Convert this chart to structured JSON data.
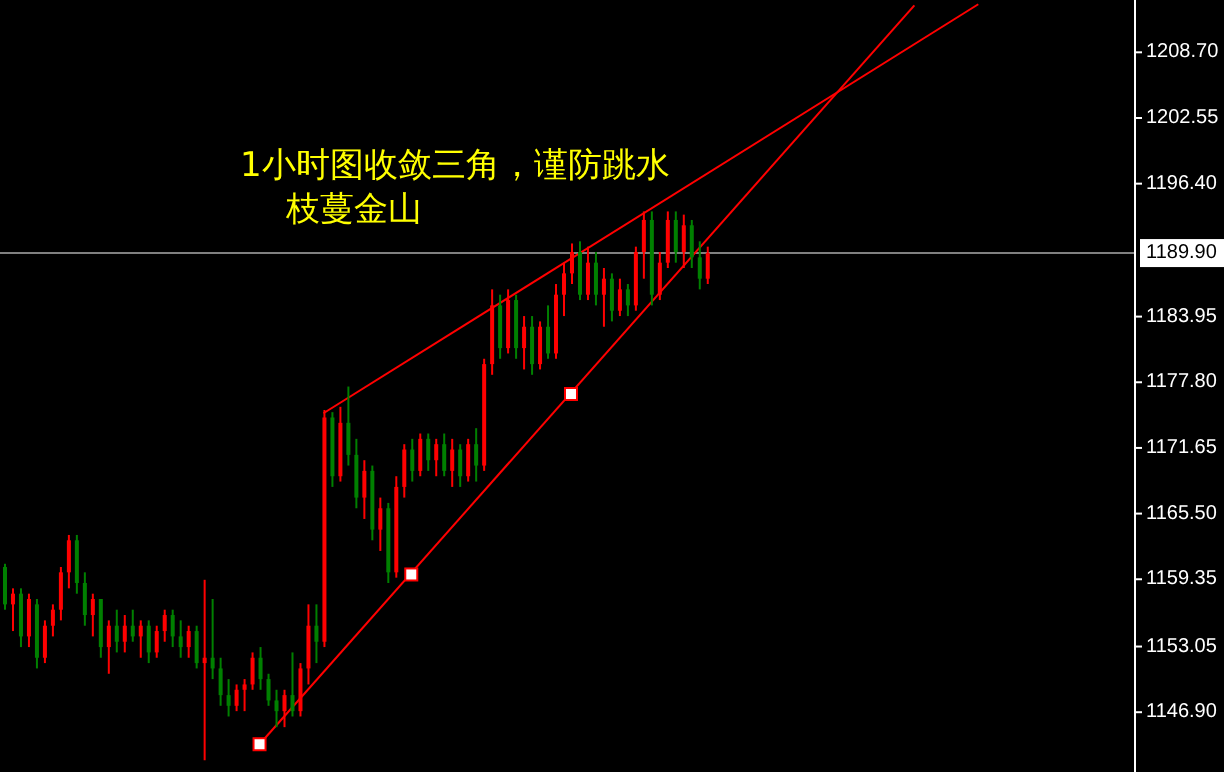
{
  "chart_data": {
    "type": "candlestick",
    "categories": [
      null,
      null,
      null,
      null,
      null,
      null,
      null,
      null,
      null,
      null,
      null,
      null,
      null,
      null,
      null,
      null,
      null,
      null,
      null,
      null,
      null,
      null,
      null,
      null,
      null,
      null,
      null,
      null,
      null,
      null,
      null,
      null,
      null,
      null,
      null,
      null,
      null,
      null,
      null,
      null,
      null,
      null,
      null,
      null,
      null,
      null,
      null,
      null,
      null,
      null,
      null,
      null,
      null,
      null,
      null,
      null,
      null,
      null,
      null,
      null,
      null,
      null,
      null,
      null,
      null,
      null,
      null,
      null,
      null,
      null,
      null,
      null,
      null,
      null,
      null,
      null,
      null,
      null,
      null,
      null,
      null,
      null,
      null,
      null,
      null,
      null,
      null,
      null,
      null,
      null,
      null,
      null,
      null,
      null,
      null,
      null,
      null,
      null,
      null,
      null,
      null,
      null,
      null,
      null,
      null,
      null,
      null,
      null,
      null,
      null,
      null,
      null,
      null,
      null,
      null,
      null,
      null,
      null,
      null,
      null,
      null,
      null,
      null,
      null,
      null,
      null,
      null,
      null,
      null,
      null,
      null,
      null,
      null,
      null,
      null,
      null,
      null,
      null,
      null,
      null,
      null,
      null
    ],
    "ohlc": [
      [
        1160.5,
        1160.8,
        1156.5,
        1157
      ],
      [
        1157,
        1158.5,
        1154.5,
        1158
      ],
      [
        1158,
        1158.5,
        1153,
        1154
      ],
      [
        1154,
        1158,
        1153,
        1157.5
      ],
      [
        1157,
        1157.5,
        1151,
        1152
      ],
      [
        1152,
        1155.5,
        1151.5,
        1155
      ],
      [
        1155,
        1157,
        1154,
        1156.5
      ],
      [
        1156.5,
        1160.5,
        1155.5,
        1160
      ],
      [
        1160,
        1163.5,
        1158.5,
        1163
      ],
      [
        1163,
        1163.5,
        1158,
        1159
      ],
      [
        1159,
        1160,
        1155,
        1156
      ],
      [
        1156,
        1158,
        1154,
        1157.5
      ],
      [
        1157.5,
        1157.5,
        1152,
        1153
      ],
      [
        1153,
        1155.5,
        1150.5,
        1155
      ],
      [
        1155,
        1156.5,
        1152.5,
        1153.5
      ],
      [
        1153.5,
        1156,
        1152.5,
        1155
      ],
      [
        1155,
        1156.5,
        1153.5,
        1154
      ],
      [
        1154,
        1155.5,
        1152,
        1155
      ],
      [
        1155,
        1155.5,
        1151.5,
        1152.5
      ],
      [
        1152.5,
        1155,
        1152,
        1154.5
      ],
      [
        1154.5,
        1156.5,
        1153.5,
        1156
      ],
      [
        1156,
        1156.5,
        1153,
        1154
      ],
      [
        1154,
        1155.5,
        1152,
        1153
      ],
      [
        1153,
        1155,
        1152,
        1154.5
      ],
      [
        1154.5,
        1155,
        1151,
        1151.5
      ],
      [
        1151.5,
        1159.3,
        1142.4,
        1152
      ],
      [
        1152,
        1157.5,
        1150,
        1151
      ],
      [
        1151,
        1152,
        1147.5,
        1148.5
      ],
      [
        1148.5,
        1150,
        1146.5,
        1147.5
      ],
      [
        1147.5,
        1149.5,
        1147,
        1149
      ],
      [
        1149,
        1150,
        1147,
        1149.5
      ],
      [
        1149.5,
        1152.5,
        1149,
        1152
      ],
      [
        1152,
        1153,
        1149,
        1150
      ],
      [
        1150,
        1150.5,
        1147.5,
        1148
      ],
      [
        1148,
        1149,
        1145.5,
        1147
      ],
      [
        1147,
        1149,
        1145.5,
        1148.5
      ],
      [
        1148.5,
        1152.5,
        1146.5,
        1147
      ],
      [
        1147,
        1151.5,
        1146.5,
        1151
      ],
      [
        1151,
        1157,
        1149.5,
        1155
      ],
      [
        1155,
        1157,
        1151.5,
        1153.5
      ],
      [
        1153.5,
        1175.2,
        1153,
        1174.5
      ],
      [
        1174.5,
        1175,
        1168,
        1169
      ],
      [
        1169,
        1175.5,
        1168.5,
        1174
      ],
      [
        1174,
        1177.4,
        1170,
        1171
      ],
      [
        1171,
        1172.5,
        1166,
        1167
      ],
      [
        1167,
        1170.5,
        1165,
        1169.5
      ],
      [
        1169.5,
        1170,
        1163,
        1164
      ],
      [
        1164,
        1167,
        1162,
        1166
      ],
      [
        1166,
        1166.5,
        1159,
        1160
      ],
      [
        1160,
        1169,
        1159.5,
        1168
      ],
      [
        1168,
        1172,
        1167,
        1171.5
      ],
      [
        1171.5,
        1172.5,
        1168.5,
        1169.5
      ],
      [
        1169.5,
        1173,
        1169,
        1172.5
      ],
      [
        1172.5,
        1173,
        1169.5,
        1170.5
      ],
      [
        1170.5,
        1172.5,
        1169,
        1172
      ],
      [
        1172,
        1173,
        1169,
        1169.5
      ],
      [
        1169.5,
        1172.5,
        1168,
        1171.5
      ],
      [
        1171.5,
        1172,
        1168,
        1169
      ],
      [
        1169,
        1172.5,
        1168.5,
        1172
      ],
      [
        1172,
        1173.5,
        1168.5,
        1170
      ],
      [
        1170,
        1180,
        1169.5,
        1179.5
      ],
      [
        1179.5,
        1186.5,
        1178.5,
        1185
      ],
      [
        1185,
        1186,
        1180,
        1181
      ],
      [
        1181,
        1186.5,
        1180.5,
        1185.5
      ],
      [
        1185.5,
        1186,
        1180,
        1181
      ],
      [
        1181,
        1184,
        1179,
        1183
      ],
      [
        1183,
        1184,
        1178.5,
        1179.5
      ],
      [
        1179.5,
        1183.5,
        1179,
        1183
      ],
      [
        1183,
        1185,
        1180,
        1180.5
      ],
      [
        1180.5,
        1187,
        1180,
        1186
      ],
      [
        1186,
        1189,
        1184,
        1188
      ],
      [
        1188,
        1190.8,
        1187,
        1190
      ],
      [
        1190,
        1191,
        1185.5,
        1186
      ],
      [
        1186,
        1190.5,
        1185.5,
        1189
      ],
      [
        1189,
        1190,
        1185,
        1186
      ],
      [
        1186,
        1188.5,
        1183,
        1187.5
      ],
      [
        1187.5,
        1188,
        1183.5,
        1184.5
      ],
      [
        1184.5,
        1187.5,
        1184,
        1186.5
      ],
      [
        1186.5,
        1187,
        1184,
        1185
      ],
      [
        1185,
        1190.5,
        1184.5,
        1190
      ],
      [
        1190,
        1193.8,
        1187.5,
        1193
      ],
      [
        1193,
        1193.8,
        1185,
        1186
      ],
      [
        1186,
        1190,
        1185.5,
        1189
      ],
      [
        1189,
        1193.8,
        1188.5,
        1193
      ],
      [
        1193,
        1193.8,
        1189,
        1190
      ],
      [
        1190,
        1193.5,
        1188.5,
        1192.5
      ],
      [
        1192.5,
        1193,
        1188.5,
        1189.5
      ],
      [
        1189.5,
        1191,
        1186.5,
        1187.5
      ],
      [
        1187.5,
        1190.5,
        1187,
        1189.9
      ],
      null,
      null,
      null,
      null,
      null,
      null,
      null,
      null,
      null,
      null,
      null,
      null,
      null,
      null,
      null,
      null,
      null,
      null,
      null,
      null,
      null,
      null,
      null,
      null,
      null,
      null,
      null,
      null,
      null,
      null,
      null,
      null,
      null,
      null,
      null,
      null,
      null,
      null,
      null,
      null,
      null,
      null,
      null,
      null,
      null,
      null,
      null,
      null,
      null,
      null,
      null,
      null,
      null
    ],
    "colors": [
      "#008000",
      "#ff0000",
      "#008000",
      "#ff0000",
      "#008000",
      "#ff0000",
      "#ff0000",
      "#ff0000",
      "#ff0000",
      "#008000",
      "#008000",
      "#ff0000",
      "#008000",
      "#ff0000",
      "#008000",
      "#ff0000",
      "#008000",
      "#ff0000",
      "#008000",
      "#ff0000",
      "#ff0000",
      "#008000",
      "#008000",
      "#ff0000",
      "#008000",
      "#ff0000",
      "#008000",
      "#008000",
      "#008000",
      "#ff0000",
      "#ff0000",
      "#ff0000",
      "#008000",
      "#008000",
      "#008000",
      "#ff0000",
      "#008000",
      "#ff0000",
      "#ff0000",
      "#008000",
      "#ff0000",
      "#008000",
      "#ff0000",
      "#008000",
      "#008000",
      "#ff0000",
      "#008000",
      "#ff0000",
      "#008000",
      "#ff0000",
      "#ff0000",
      "#008000",
      "#ff0000",
      "#008000",
      "#ff0000",
      "#008000",
      "#ff0000",
      "#008000",
      "#ff0000",
      "#008000",
      "#ff0000",
      "#ff0000",
      "#008000",
      "#ff0000",
      "#008000",
      "#ff0000",
      "#008000",
      "#ff0000",
      "#008000",
      "#ff0000",
      "#ff0000",
      "#ff0000",
      "#008000",
      "#ff0000",
      "#008000",
      "#ff0000",
      "#008000",
      "#ff0000",
      "#008000",
      "#ff0000",
      "#ff0000",
      "#008000",
      "#ff0000",
      "#ff0000",
      "#008000",
      "#ff0000",
      "#008000",
      "#008000",
      "#ff0000",
      null,
      null,
      null,
      null,
      null,
      null,
      null,
      null,
      null,
      null,
      null,
      null,
      null,
      null,
      null,
      null,
      null,
      null,
      null,
      null,
      null,
      null,
      null,
      null,
      null,
      null,
      null,
      null,
      null,
      null,
      null,
      null,
      null,
      null,
      null,
      null,
      null,
      null,
      null,
      null,
      null,
      null,
      null,
      null,
      null,
      null,
      null,
      null,
      null,
      null,
      null,
      null,
      null
    ],
    "series": [
      {
        "type": "line",
        "values": [
          null,
          null,
          null,
          null,
          null,
          null,
          null,
          null,
          null,
          null,
          null,
          null,
          null,
          null,
          null,
          null,
          null,
          null,
          null,
          null,
          null,
          null,
          null,
          null,
          null,
          null,
          null,
          null,
          null,
          null,
          null,
          null,
          null,
          null,
          null,
          null,
          null,
          null,
          null,
          null,
          1174.9,
          null,
          null,
          null,
          null,
          null,
          null,
          null,
          null,
          null,
          null,
          null,
          null,
          null,
          null,
          null,
          null,
          null,
          null,
          null,
          null,
          null,
          null,
          null,
          null,
          null,
          null,
          null,
          null,
          null,
          null,
          null,
          null,
          null,
          null,
          null,
          null,
          null,
          null,
          null,
          null,
          null,
          null,
          null,
          null,
          null,
          null,
          null,
          null,
          null,
          null,
          null,
          null,
          null,
          null,
          null,
          null,
          null,
          null,
          null,
          null,
          null,
          null,
          null,
          null,
          null,
          null,
          null,
          null,
          null,
          null,
          null,
          null,
          null,
          null,
          null,
          null,
          null,
          null,
          null,
          null,
          null,
          1213.2,
          null,
          null,
          null,
          null,
          null,
          null,
          null,
          null,
          null,
          null,
          null,
          null,
          null,
          null,
          null,
          null,
          null,
          null,
          null
        ],
        "color": "#ff0000"
      },
      {
        "type": "line",
        "values": [
          null,
          null,
          null,
          null,
          null,
          null,
          null,
          null,
          null,
          null,
          null,
          null,
          null,
          null,
          null,
          null,
          null,
          null,
          null,
          null,
          null,
          null,
          null,
          null,
          null,
          null,
          null,
          null,
          null,
          null,
          null,
          null,
          1143.9,
          null,
          null,
          null,
          null,
          null,
          null,
          null,
          null,
          null,
          null,
          null,
          null,
          null,
          null,
          null,
          null,
          null,
          null,
          null,
          null,
          null,
          null,
          null,
          null,
          null,
          null,
          null,
          null,
          null,
          null,
          null,
          null,
          null,
          null,
          null,
          null,
          null,
          null,
          null,
          null,
          null,
          null,
          null,
          null,
          null,
          null,
          null,
          null,
          null,
          null,
          null,
          null,
          null,
          null,
          null,
          null,
          null,
          null,
          null,
          null,
          null,
          null,
          null,
          null,
          null,
          null,
          null,
          null,
          null,
          null,
          null,
          null,
          null,
          null,
          null,
          null,
          null,
          null,
          null,
          null,
          null,
          1213.1,
          null,
          null,
          null,
          null,
          null,
          null,
          null,
          null,
          null,
          null,
          null,
          null,
          null,
          null,
          null,
          null,
          null,
          null,
          null,
          null,
          null,
          null,
          null,
          null,
          null,
          null,
          null
        ],
        "color": "#ff0000"
      },
      {
        "type": "scatter",
        "values": [
          null,
          null,
          null,
          null,
          null,
          null,
          null,
          null,
          null,
          null,
          null,
          null,
          null,
          null,
          null,
          null,
          null,
          null,
          null,
          null,
          null,
          null,
          null,
          null,
          null,
          null,
          null,
          null,
          null,
          null,
          null,
          null,
          1143.9,
          null,
          null,
          null,
          null,
          null,
          null,
          null,
          null,
          null,
          null,
          null,
          null,
          null,
          null,
          null,
          null,
          null,
          null,
          1159.8,
          null,
          null,
          null,
          null,
          null,
          null,
          null,
          null,
          null,
          null,
          null,
          null,
          null,
          null,
          null,
          null,
          null,
          null,
          null,
          1176.7,
          null,
          null,
          null,
          null,
          null,
          null,
          null,
          null,
          null,
          null,
          null,
          null,
          null,
          null,
          null,
          null,
          null,
          null,
          null,
          null,
          null,
          null,
          null,
          null,
          null,
          null,
          null,
          null,
          null,
          null,
          null,
          null,
          null,
          null,
          null,
          null,
          null,
          null,
          null,
          null,
          null,
          null,
          null,
          null,
          null,
          null,
          null,
          null,
          null,
          null,
          null,
          null,
          null,
          null,
          null,
          null,
          null,
          null,
          null,
          null,
          null,
          null,
          null,
          null,
          null,
          null,
          null,
          null,
          null,
          null
        ],
        "color": "#ffffff",
        "marker": "square"
      }
    ],
    "ylim": [
      1141.3,
      1213.6
    ],
    "yticks": [
      {
        "value": 1146.9,
        "label": "1146.90"
      },
      {
        "value": 1153.05,
        "label": "1153.05"
      },
      {
        "value": 1159.35,
        "label": "1159.35"
      },
      {
        "value": 1165.5,
        "label": "1165.50"
      },
      {
        "value": 1171.65,
        "label": "1171.65"
      },
      {
        "value": 1177.8,
        "label": "1177.80"
      },
      {
        "value": 1183.95,
        "label": "1183.95"
      },
      {
        "value": 1196.4,
        "label": "1196.40"
      },
      {
        "value": 1202.55,
        "label": "1202.55"
      },
      {
        "value": 1208.7,
        "label": "1208.70"
      }
    ],
    "tick_labels": "y",
    "grid": false,
    "ref_lines": [
      {
        "axis": "y",
        "value": 1189.9,
        "label": "1189.90",
        "color": "#808080"
      }
    ],
    "annotations": [
      "1小时图收敛三角，谨防跳水",
      "枝蔓金山"
    ]
  }
}
